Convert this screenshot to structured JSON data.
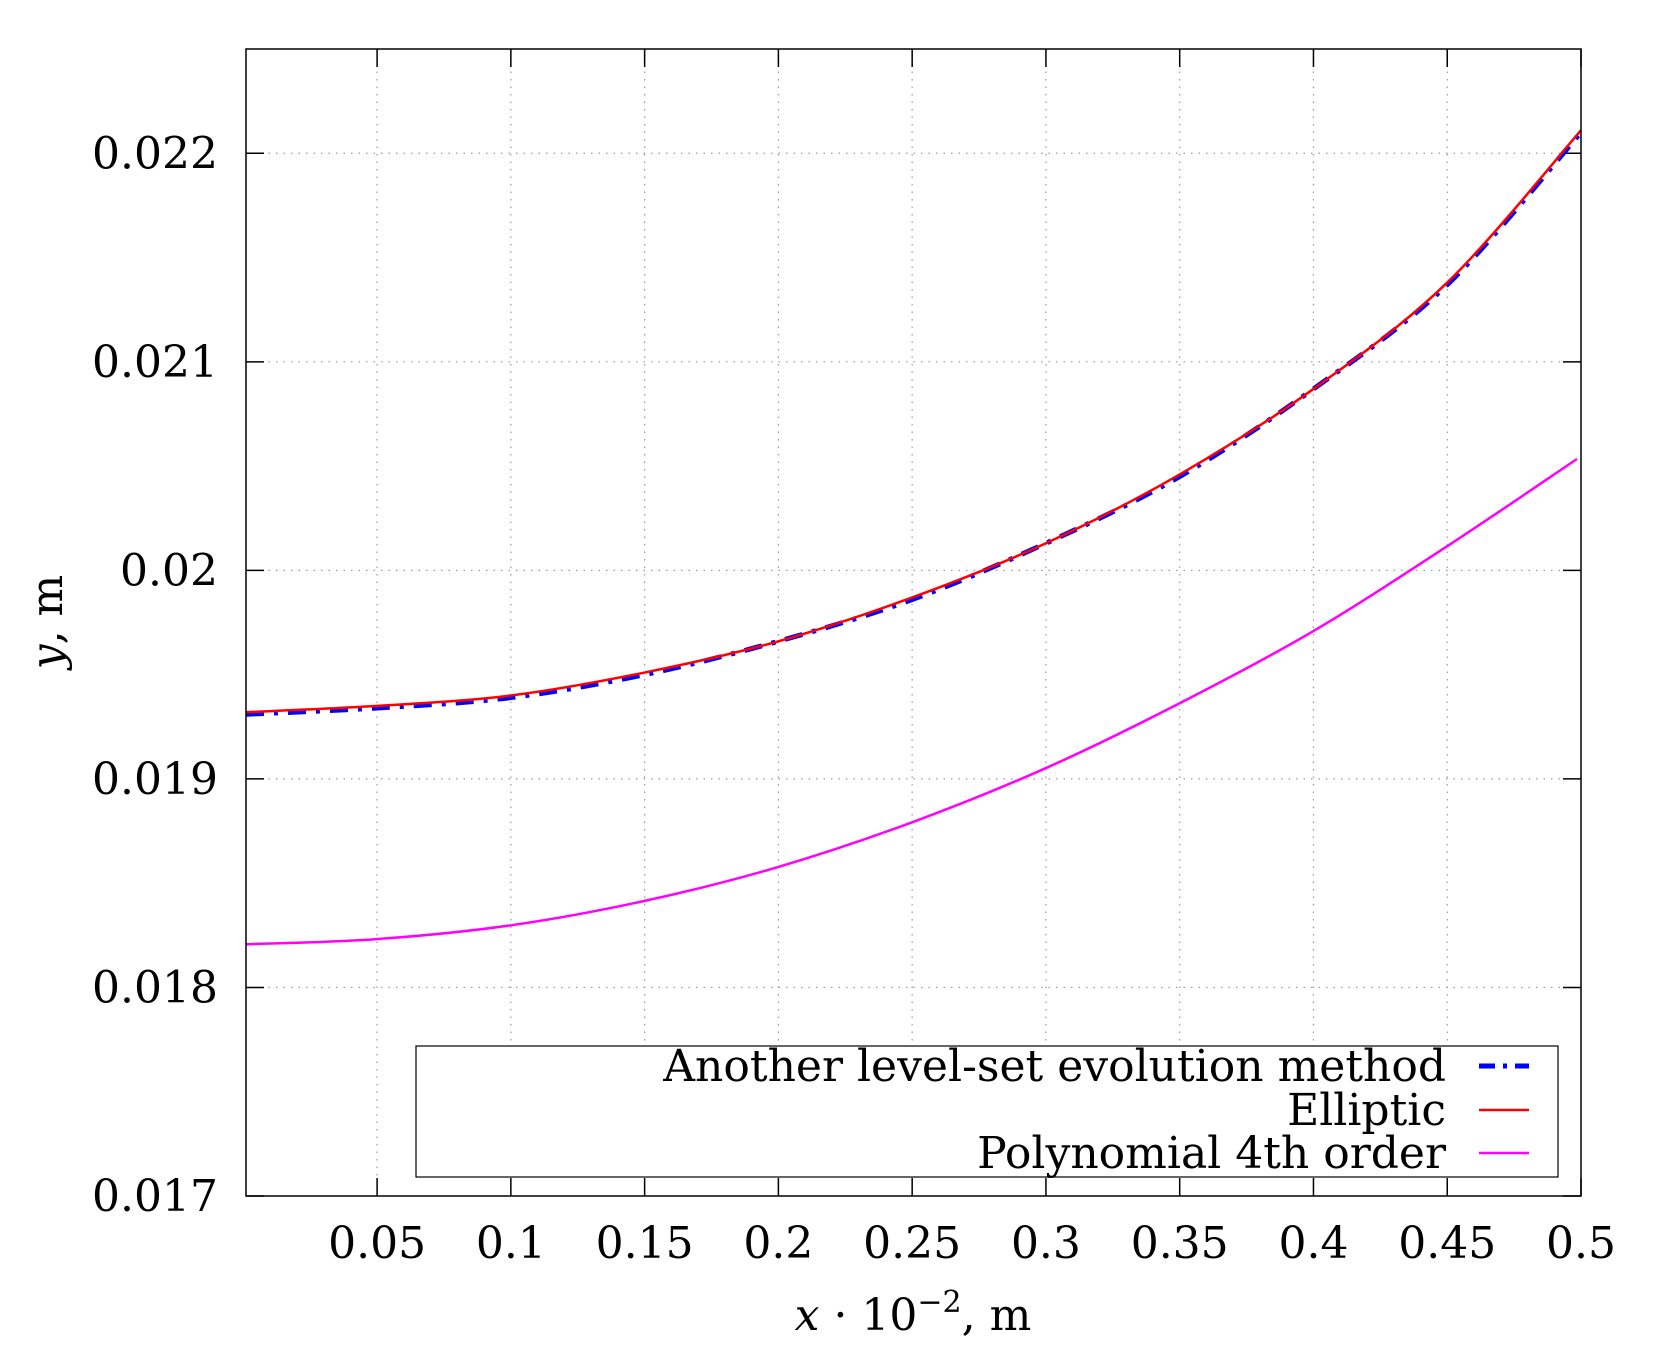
{
  "chart_data": {
    "type": "line",
    "xlabel": "x · 10⁻², m",
    "ylabel": "y, m",
    "xlim": [
      0.001,
      0.5
    ],
    "ylim": [
      0.017,
      0.0225
    ],
    "xticks": [
      "0.05",
      "0.1",
      "0.15",
      "0.2",
      "0.25",
      "0.3",
      "0.35",
      "0.4",
      "0.45",
      "0.5"
    ],
    "yticks": [
      "0.017",
      "0.018",
      "0.019",
      "0.02",
      "0.021",
      "0.022"
    ],
    "grid": true,
    "legend_placement": "bottom-right",
    "series": [
      {
        "name": "Another level-set evolution method",
        "color": "#0000ff",
        "style": "dash-dot",
        "x": [
          0.001,
          0.05,
          0.1,
          0.15,
          0.2,
          0.25,
          0.3,
          0.35,
          0.4,
          0.45,
          0.5
        ],
        "y": [
          0.01931,
          0.01934,
          0.01939,
          0.0195,
          0.01966,
          0.01986,
          0.02013,
          0.02045,
          0.02087,
          0.02137,
          0.0221
        ]
      },
      {
        "name": "Elliptic",
        "color": "#ff0000",
        "style": "solid",
        "x": [
          0.001,
          0.05,
          0.1,
          0.15,
          0.2,
          0.25,
          0.3,
          0.35,
          0.4,
          0.45,
          0.5
        ],
        "y": [
          0.01932,
          0.01935,
          0.0194,
          0.01951,
          0.01966,
          0.01987,
          0.02013,
          0.02046,
          0.02087,
          0.02138,
          0.02211
        ]
      },
      {
        "name": "Polynomial 4th order",
        "color": "#ff00ff",
        "style": "solid",
        "x": [
          0.001,
          0.05,
          0.1,
          0.15,
          0.2,
          0.25,
          0.3,
          0.35,
          0.4,
          0.45,
          0.4985
        ],
        "y": [
          0.018207,
          0.018232,
          0.018298,
          0.018415,
          0.018578,
          0.018792,
          0.019052,
          0.019363,
          0.019709,
          0.020116,
          0.020534
        ]
      }
    ]
  }
}
